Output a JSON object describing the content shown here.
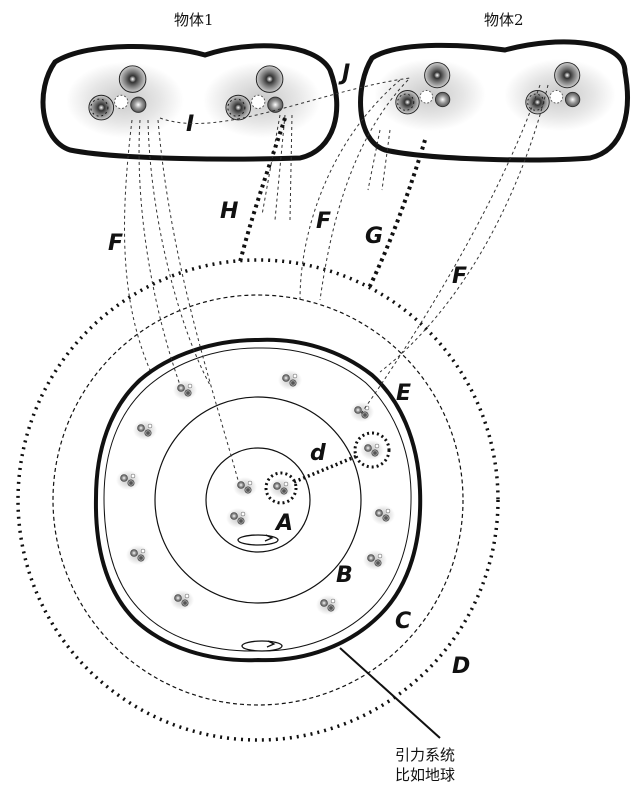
{
  "labels": {
    "body1_title": "物体1",
    "body2_title": "物体2",
    "system_line1": "引力系统",
    "system_line2": "比如地球"
  },
  "letters": {
    "A": "A",
    "B": "B",
    "C": "C",
    "D": "D",
    "E": "E",
    "F": "F",
    "G": "G",
    "H": "H",
    "I": "I",
    "J": "J",
    "d": "d"
  }
}
